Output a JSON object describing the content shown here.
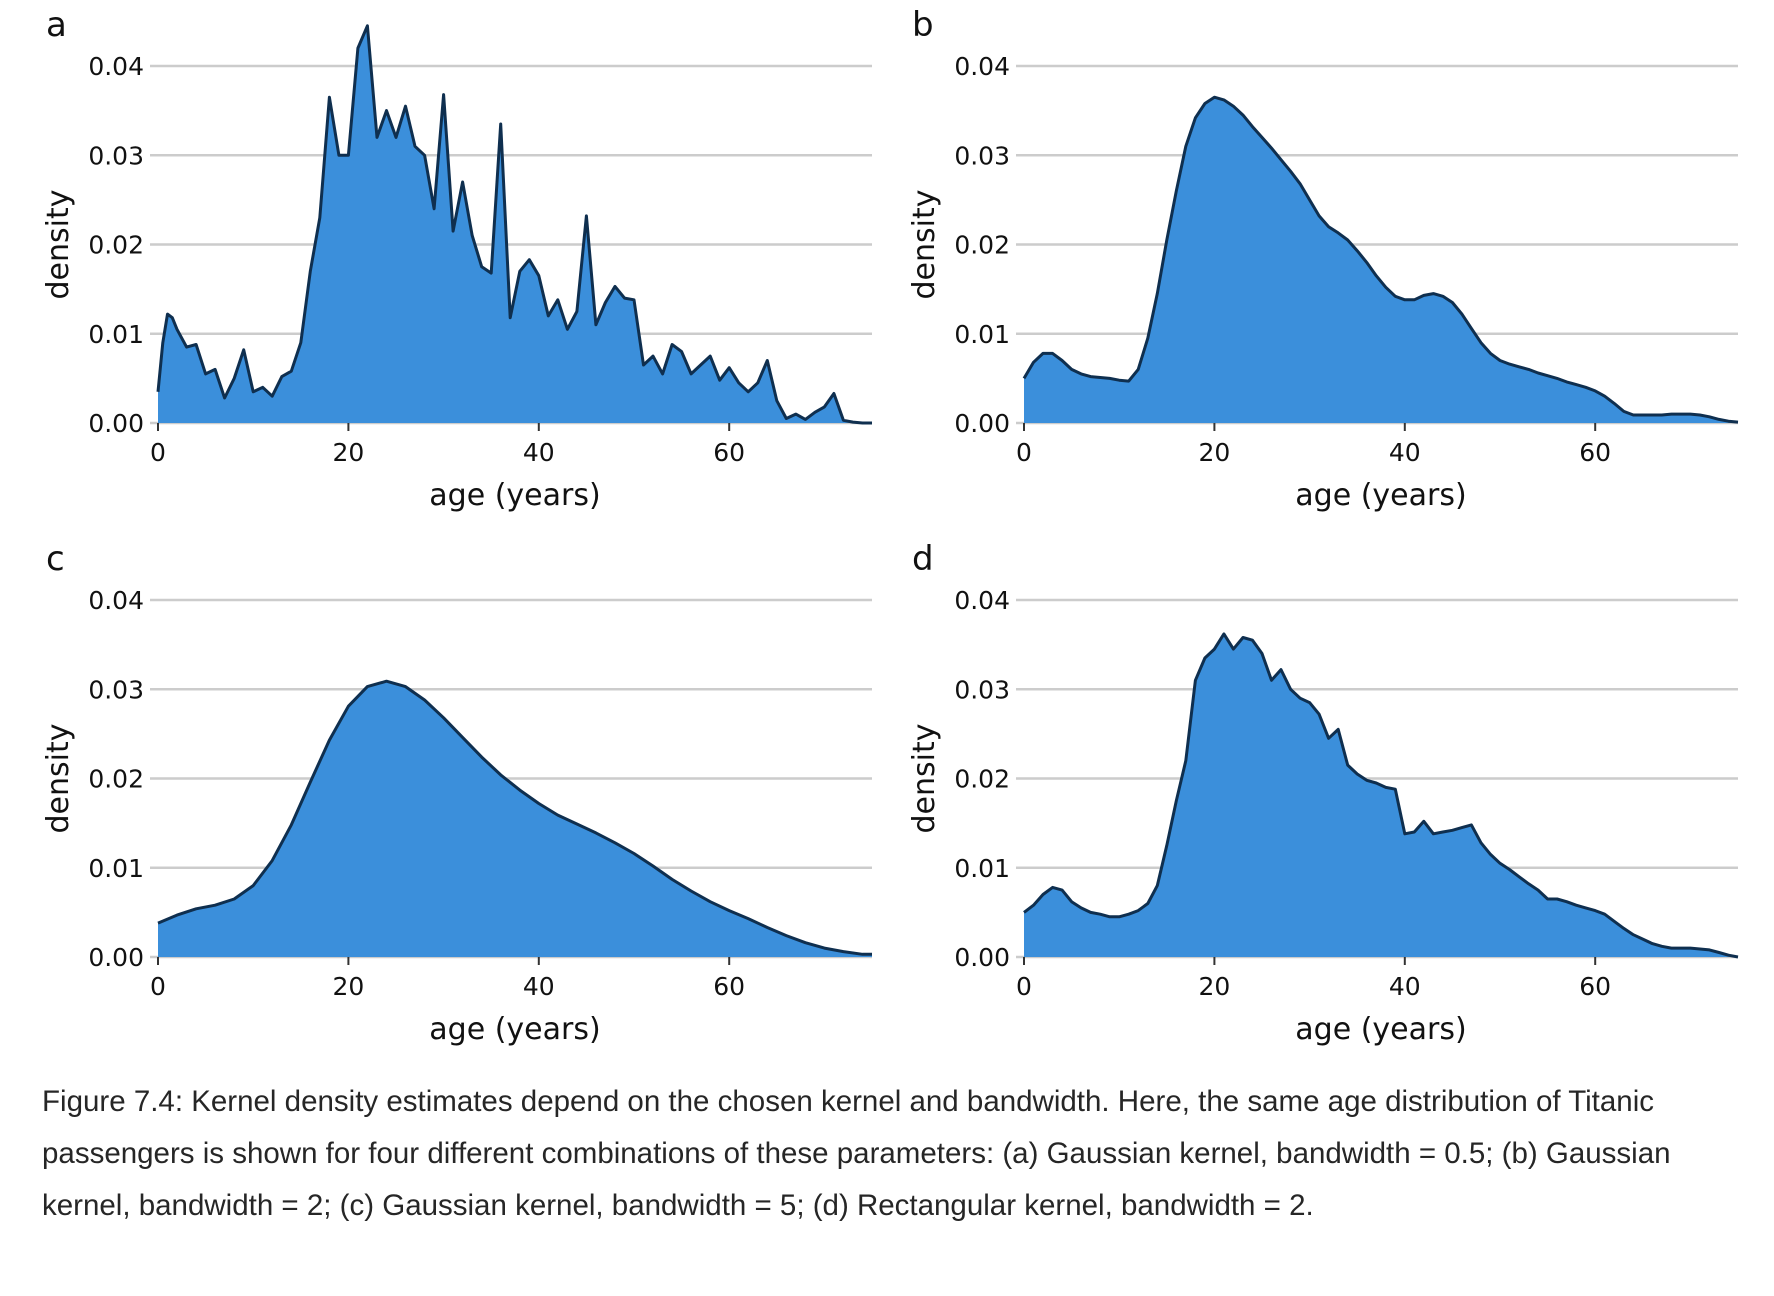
{
  "colors": {
    "fill": "#3b8fdb",
    "stroke": "#0f2f4f",
    "grid": "#cccccc"
  },
  "caption": "Figure 7.4: Kernel density estimates depend on the chosen kernel and bandwidth. Here, the same age distribution of Titanic passengers is shown for four different combinations of these parameters: (a) Gaussian kernel, bandwidth = 0.5; (b) Gaussian kernel, bandwidth = 2; (c) Gaussian kernel, bandwidth = 5; (d) Rectangular kernel, bandwidth = 2.",
  "chart_data": [
    {
      "panel": "a",
      "type": "area",
      "xlabel": "age (years)",
      "ylabel": "density",
      "xlim": [
        0,
        75
      ],
      "ylim": [
        0,
        0.04
      ],
      "xticks": [
        "0",
        "20",
        "40",
        "60"
      ],
      "yticks": [
        "0.00",
        "0.01",
        "0.02",
        "0.03",
        "0.04"
      ],
      "grid": "horizontal",
      "x": [
        0,
        0.5,
        1,
        1.5,
        2,
        3,
        4,
        5,
        6,
        7,
        8,
        9,
        10,
        11,
        12,
        13,
        14,
        15,
        16,
        17,
        18,
        19,
        20,
        21,
        22,
        23,
        24,
        25,
        26,
        27,
        28,
        29,
        30,
        31,
        32,
        33,
        34,
        35,
        36,
        37,
        38,
        39,
        40,
        41,
        42,
        43,
        44,
        45,
        46,
        47,
        48,
        49,
        50,
        51,
        52,
        53,
        54,
        55,
        56,
        57,
        58,
        59,
        60,
        61,
        62,
        63,
        64,
        65,
        66,
        67,
        68,
        69,
        70,
        71,
        72,
        73,
        74,
        75
      ],
      "y": [
        0.0035,
        0.009,
        0.0122,
        0.0118,
        0.0105,
        0.0085,
        0.0088,
        0.0055,
        0.006,
        0.0028,
        0.005,
        0.0082,
        0.0035,
        0.004,
        0.003,
        0.0052,
        0.0058,
        0.009,
        0.017,
        0.023,
        0.0365,
        0.03,
        0.03,
        0.042,
        0.0445,
        0.032,
        0.035,
        0.032,
        0.0355,
        0.031,
        0.03,
        0.024,
        0.0368,
        0.0215,
        0.027,
        0.021,
        0.0175,
        0.0168,
        0.0335,
        0.0118,
        0.017,
        0.0183,
        0.0165,
        0.012,
        0.0138,
        0.0105,
        0.0125,
        0.0232,
        0.011,
        0.0135,
        0.0153,
        0.014,
        0.0138,
        0.0065,
        0.0075,
        0.0055,
        0.0088,
        0.008,
        0.0055,
        0.0065,
        0.0075,
        0.0048,
        0.0062,
        0.0045,
        0.0035,
        0.0045,
        0.007,
        0.0025,
        0.0005,
        0.001,
        0.0004,
        0.0012,
        0.0018,
        0.0033,
        0.0003,
        0.0001,
        0.0,
        0.0
      ]
    },
    {
      "panel": "b",
      "type": "area",
      "xlabel": "age (years)",
      "ylabel": "density",
      "xlim": [
        0,
        75
      ],
      "ylim": [
        0,
        0.04
      ],
      "xticks": [
        "0",
        "20",
        "40",
        "60"
      ],
      "yticks": [
        "0.00",
        "0.01",
        "0.02",
        "0.03",
        "0.04"
      ],
      "grid": "horizontal",
      "x": [
        0,
        1,
        2,
        3,
        4,
        5,
        6,
        7,
        8,
        9,
        10,
        11,
        12,
        13,
        14,
        15,
        16,
        17,
        18,
        19,
        20,
        21,
        22,
        23,
        24,
        25,
        26,
        27,
        28,
        29,
        30,
        31,
        32,
        33,
        34,
        35,
        36,
        37,
        38,
        39,
        40,
        41,
        42,
        43,
        44,
        45,
        46,
        47,
        48,
        49,
        50,
        51,
        52,
        53,
        54,
        55,
        56,
        57,
        58,
        59,
        60,
        61,
        62,
        63,
        64,
        65,
        66,
        67,
        68,
        69,
        70,
        71,
        72,
        73,
        74,
        75
      ],
      "y": [
        0.005,
        0.0068,
        0.0078,
        0.0078,
        0.007,
        0.006,
        0.0055,
        0.0052,
        0.0051,
        0.005,
        0.0048,
        0.0047,
        0.006,
        0.0095,
        0.0145,
        0.0205,
        0.026,
        0.031,
        0.0342,
        0.0358,
        0.0365,
        0.0362,
        0.0355,
        0.0345,
        0.0332,
        0.032,
        0.0308,
        0.0295,
        0.0282,
        0.0268,
        0.025,
        0.0232,
        0.022,
        0.0213,
        0.0205,
        0.0193,
        0.018,
        0.0165,
        0.0152,
        0.0142,
        0.0138,
        0.0138,
        0.0143,
        0.0145,
        0.0142,
        0.0135,
        0.0122,
        0.0106,
        0.009,
        0.0078,
        0.007,
        0.0066,
        0.0063,
        0.006,
        0.0056,
        0.0053,
        0.005,
        0.0046,
        0.0043,
        0.004,
        0.0036,
        0.003,
        0.0022,
        0.0013,
        0.0009,
        0.0009,
        0.0009,
        0.0009,
        0.001,
        0.001,
        0.001,
        0.0009,
        0.0007,
        0.0004,
        0.0002,
        0.0001
      ]
    },
    {
      "panel": "c",
      "type": "area",
      "xlabel": "age (years)",
      "ylabel": "density",
      "xlim": [
        0,
        75
      ],
      "ylim": [
        0,
        0.04
      ],
      "xticks": [
        "0",
        "20",
        "40",
        "60"
      ],
      "yticks": [
        "0.00",
        "0.01",
        "0.02",
        "0.03",
        "0.04"
      ],
      "grid": "horizontal",
      "x": [
        0,
        2,
        4,
        6,
        8,
        10,
        12,
        14,
        16,
        18,
        20,
        22,
        24,
        26,
        28,
        30,
        32,
        34,
        36,
        38,
        40,
        42,
        44,
        46,
        48,
        50,
        52,
        54,
        56,
        58,
        60,
        62,
        64,
        66,
        68,
        70,
        72,
        74,
        75
      ],
      "y": [
        0.0038,
        0.0047,
        0.0054,
        0.0058,
        0.0065,
        0.008,
        0.0108,
        0.0148,
        0.0196,
        0.0243,
        0.0281,
        0.0303,
        0.0309,
        0.0303,
        0.0288,
        0.0268,
        0.0246,
        0.0224,
        0.0204,
        0.0187,
        0.0172,
        0.0159,
        0.0149,
        0.0139,
        0.0128,
        0.0116,
        0.0102,
        0.0087,
        0.0074,
        0.0062,
        0.0052,
        0.0043,
        0.0033,
        0.0024,
        0.0016,
        0.001,
        0.0006,
        0.0003,
        0.0003
      ]
    },
    {
      "panel": "d",
      "type": "area",
      "xlabel": "age (years)",
      "ylabel": "density",
      "xlim": [
        0,
        75
      ],
      "ylim": [
        0,
        0.04
      ],
      "xticks": [
        "0",
        "20",
        "40",
        "60"
      ],
      "yticks": [
        "0.00",
        "0.01",
        "0.02",
        "0.03",
        "0.04"
      ],
      "grid": "horizontal",
      "x": [
        0,
        1,
        2,
        3,
        4,
        5,
        6,
        7,
        8,
        9,
        10,
        11,
        12,
        13,
        14,
        15,
        16,
        17,
        18,
        19,
        20,
        21,
        22,
        23,
        24,
        25,
        26,
        27,
        28,
        29,
        30,
        31,
        32,
        33,
        34,
        35,
        36,
        37,
        38,
        39,
        40,
        41,
        42,
        43,
        44,
        45,
        46,
        47,
        48,
        49,
        50,
        51,
        52,
        53,
        54,
        55,
        56,
        57,
        58,
        59,
        60,
        61,
        62,
        63,
        64,
        65,
        66,
        67,
        68,
        69,
        70,
        71,
        72,
        73,
        74,
        75
      ],
      "y": [
        0.005,
        0.0058,
        0.007,
        0.0078,
        0.0075,
        0.0062,
        0.0055,
        0.005,
        0.0048,
        0.0045,
        0.0045,
        0.0048,
        0.0052,
        0.006,
        0.008,
        0.0125,
        0.0175,
        0.022,
        0.031,
        0.0335,
        0.0345,
        0.0362,
        0.0345,
        0.0358,
        0.0355,
        0.034,
        0.031,
        0.0322,
        0.03,
        0.029,
        0.0285,
        0.0272,
        0.0245,
        0.0255,
        0.0215,
        0.0205,
        0.0198,
        0.0195,
        0.019,
        0.0188,
        0.0138,
        0.014,
        0.0152,
        0.0138,
        0.014,
        0.0142,
        0.0145,
        0.0148,
        0.0128,
        0.0115,
        0.0105,
        0.0098,
        0.009,
        0.0082,
        0.0075,
        0.0065,
        0.0065,
        0.0062,
        0.0058,
        0.0055,
        0.0052,
        0.0048,
        0.004,
        0.0032,
        0.0025,
        0.002,
        0.0015,
        0.0012,
        0.001,
        0.001,
        0.001,
        0.0009,
        0.0008,
        0.0005,
        0.0002,
        0.0
      ]
    }
  ]
}
